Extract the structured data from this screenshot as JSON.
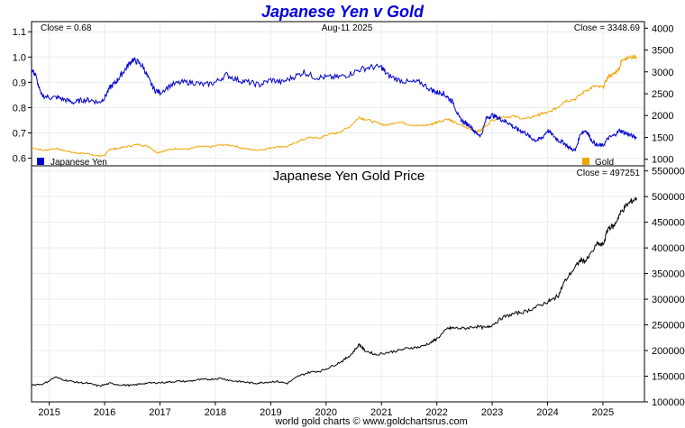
{
  "footer": "world gold charts © www.goldchartsrus.com",
  "chart_data": [
    {
      "type": "line",
      "title": "Japanese Yen v Gold",
      "date_label": "Aug-11  2025",
      "close_left": "Close = 0.68",
      "close_right": "Close = 3348.69",
      "x_ticks": [
        "2015",
        "2016",
        "2017",
        "2018",
        "2019",
        "2020",
        "2021",
        "2022",
        "2023",
        "2024",
        "2025"
      ],
      "y_left_ticks": [
        0.6,
        0.7,
        0.8,
        0.9,
        1.0,
        1.1
      ],
      "y_left_ylim": [
        0.57,
        1.14
      ],
      "y_right_ticks": [
        1000,
        1500,
        2000,
        2500,
        3000,
        3500,
        4000
      ],
      "y_right_ylim": [
        850,
        4150
      ],
      "xlim": [
        2014.68,
        2025.75
      ],
      "grid": true,
      "series": [
        {
          "name": "Japanese Yen",
          "axis": "left",
          "color": "#0000cc",
          "x": [
            2014.68,
            2014.75,
            2014.85,
            2015.0,
            2015.15,
            2015.3,
            2015.45,
            2015.6,
            2015.75,
            2015.9,
            2016.0,
            2016.1,
            2016.2,
            2016.3,
            2016.4,
            2016.5,
            2016.6,
            2016.7,
            2016.8,
            2016.9,
            2017.0,
            2017.2,
            2017.4,
            2017.6,
            2017.8,
            2018.0,
            2018.2,
            2018.4,
            2018.6,
            2018.8,
            2019.0,
            2019.2,
            2019.4,
            2019.6,
            2019.8,
            2020.0,
            2020.2,
            2020.4,
            2020.6,
            2020.8,
            2021.0,
            2021.1,
            2021.3,
            2021.5,
            2021.7,
            2021.9,
            2022.0,
            2022.1,
            2022.2,
            2022.3,
            2022.4,
            2022.5,
            2022.6,
            2022.7,
            2022.8,
            2022.9,
            2023.0,
            2023.1,
            2023.2,
            2023.3,
            2023.4,
            2023.5,
            2023.6,
            2023.7,
            2023.8,
            2023.9,
            2024.0,
            2024.1,
            2024.2,
            2024.3,
            2024.4,
            2024.5,
            2024.6,
            2024.7,
            2024.8,
            2024.9,
            2025.0,
            2025.1,
            2025.2,
            2025.3,
            2025.4,
            2025.5,
            2025.61
          ],
          "values": [
            0.95,
            0.93,
            0.85,
            0.84,
            0.84,
            0.83,
            0.82,
            0.83,
            0.83,
            0.82,
            0.84,
            0.88,
            0.9,
            0.93,
            0.96,
            0.99,
            0.98,
            0.96,
            0.91,
            0.87,
            0.86,
            0.89,
            0.9,
            0.9,
            0.89,
            0.9,
            0.93,
            0.91,
            0.9,
            0.89,
            0.91,
            0.9,
            0.92,
            0.94,
            0.92,
            0.92,
            0.92,
            0.93,
            0.95,
            0.96,
            0.96,
            0.93,
            0.91,
            0.9,
            0.9,
            0.87,
            0.86,
            0.86,
            0.84,
            0.82,
            0.76,
            0.74,
            0.73,
            0.7,
            0.69,
            0.76,
            0.77,
            0.76,
            0.75,
            0.74,
            0.72,
            0.71,
            0.7,
            0.68,
            0.67,
            0.68,
            0.71,
            0.69,
            0.67,
            0.66,
            0.64,
            0.63,
            0.7,
            0.71,
            0.67,
            0.65,
            0.65,
            0.68,
            0.69,
            0.71,
            0.7,
            0.69,
            0.68
          ]
        },
        {
          "name": "Gold",
          "axis": "right",
          "color": "#f0a400",
          "x": [
            2014.68,
            2014.9,
            2015.1,
            2015.3,
            2015.5,
            2015.7,
            2015.9,
            2016.0,
            2016.1,
            2016.2,
            2016.4,
            2016.6,
            2016.8,
            2016.95,
            2017.1,
            2017.3,
            2017.5,
            2017.7,
            2017.9,
            2018.1,
            2018.3,
            2018.5,
            2018.7,
            2018.9,
            2019.1,
            2019.3,
            2019.5,
            2019.7,
            2019.9,
            2020.0,
            2020.2,
            2020.4,
            2020.6,
            2020.7,
            2020.9,
            2021.1,
            2021.3,
            2021.5,
            2021.7,
            2021.9,
            2022.0,
            2022.2,
            2022.3,
            2022.5,
            2022.7,
            2022.8,
            2023.0,
            2023.2,
            2023.4,
            2023.6,
            2023.8,
            2023.9,
            2024.0,
            2024.2,
            2024.3,
            2024.5,
            2024.7,
            2024.85,
            2025.0,
            2025.1,
            2025.2,
            2025.3,
            2025.35,
            2025.45,
            2025.61
          ],
          "values": [
            1270,
            1200,
            1250,
            1190,
            1140,
            1130,
            1070,
            1090,
            1230,
            1240,
            1290,
            1340,
            1290,
            1150,
            1200,
            1250,
            1230,
            1290,
            1280,
            1330,
            1320,
            1250,
            1210,
            1230,
            1290,
            1290,
            1410,
            1500,
            1480,
            1560,
            1600,
            1720,
            1960,
            1920,
            1840,
            1780,
            1860,
            1800,
            1760,
            1800,
            1850,
            1930,
            1850,
            1740,
            1640,
            1660,
            1900,
            1970,
            1980,
            1920,
            2000,
            2050,
            2060,
            2200,
            2330,
            2380,
            2580,
            2670,
            2640,
            2900,
            2950,
            3100,
            3300,
            3320,
            3350
          ]
        }
      ]
    },
    {
      "type": "line",
      "title": "Japanese Yen Gold Price",
      "close_right": "Close = 497251",
      "x_ticks": [
        "2015",
        "2016",
        "2017",
        "2018",
        "2019",
        "2020",
        "2021",
        "2022",
        "2023",
        "2024",
        "2025"
      ],
      "y_right_ticks": [
        100000,
        150000,
        200000,
        250000,
        300000,
        350000,
        400000,
        450000,
        500000,
        550000
      ],
      "ylim": [
        100000,
        560000
      ],
      "xlim": [
        2014.68,
        2025.75
      ],
      "grid": true,
      "series": [
        {
          "name": "Japanese Yen Gold Price",
          "color": "#000000",
          "x": [
            2014.68,
            2014.9,
            2015.1,
            2015.3,
            2015.5,
            2015.7,
            2015.9,
            2016.1,
            2016.3,
            2016.5,
            2016.7,
            2016.9,
            2017.1,
            2017.3,
            2017.5,
            2017.7,
            2017.9,
            2018.1,
            2018.3,
            2018.5,
            2018.7,
            2018.9,
            2019.1,
            2019.3,
            2019.5,
            2019.7,
            2019.9,
            2020.1,
            2020.3,
            2020.45,
            2020.6,
            2020.7,
            2020.9,
            2021.1,
            2021.3,
            2021.5,
            2021.7,
            2021.9,
            2022.0,
            2022.2,
            2022.3,
            2022.5,
            2022.7,
            2022.9,
            2023.0,
            2023.2,
            2023.4,
            2023.6,
            2023.8,
            2024.0,
            2024.1,
            2024.2,
            2024.3,
            2024.5,
            2024.6,
            2024.7,
            2024.9,
            2025.0,
            2025.1,
            2025.2,
            2025.3,
            2025.4,
            2025.5,
            2025.61
          ],
          "values": [
            133000,
            135000,
            148000,
            142000,
            138000,
            136000,
            131000,
            136000,
            133000,
            132000,
            136000,
            137000,
            138000,
            140000,
            140000,
            143000,
            144000,
            146000,
            141000,
            139000,
            136000,
            138000,
            140000,
            136000,
            150000,
            158000,
            160000,
            169000,
            180000,
            192000,
            212000,
            200000,
            192000,
            196000,
            200000,
            205000,
            207000,
            216000,
            223000,
            243000,
            244000,
            243000,
            247000,
            244000,
            250000,
            265000,
            272000,
            276000,
            285000,
            295000,
            300000,
            308000,
            333000,
            363000,
            376000,
            375000,
            408000,
            405000,
            440000,
            442000,
            465000,
            480000,
            490000,
            497000
          ]
        }
      ]
    }
  ]
}
